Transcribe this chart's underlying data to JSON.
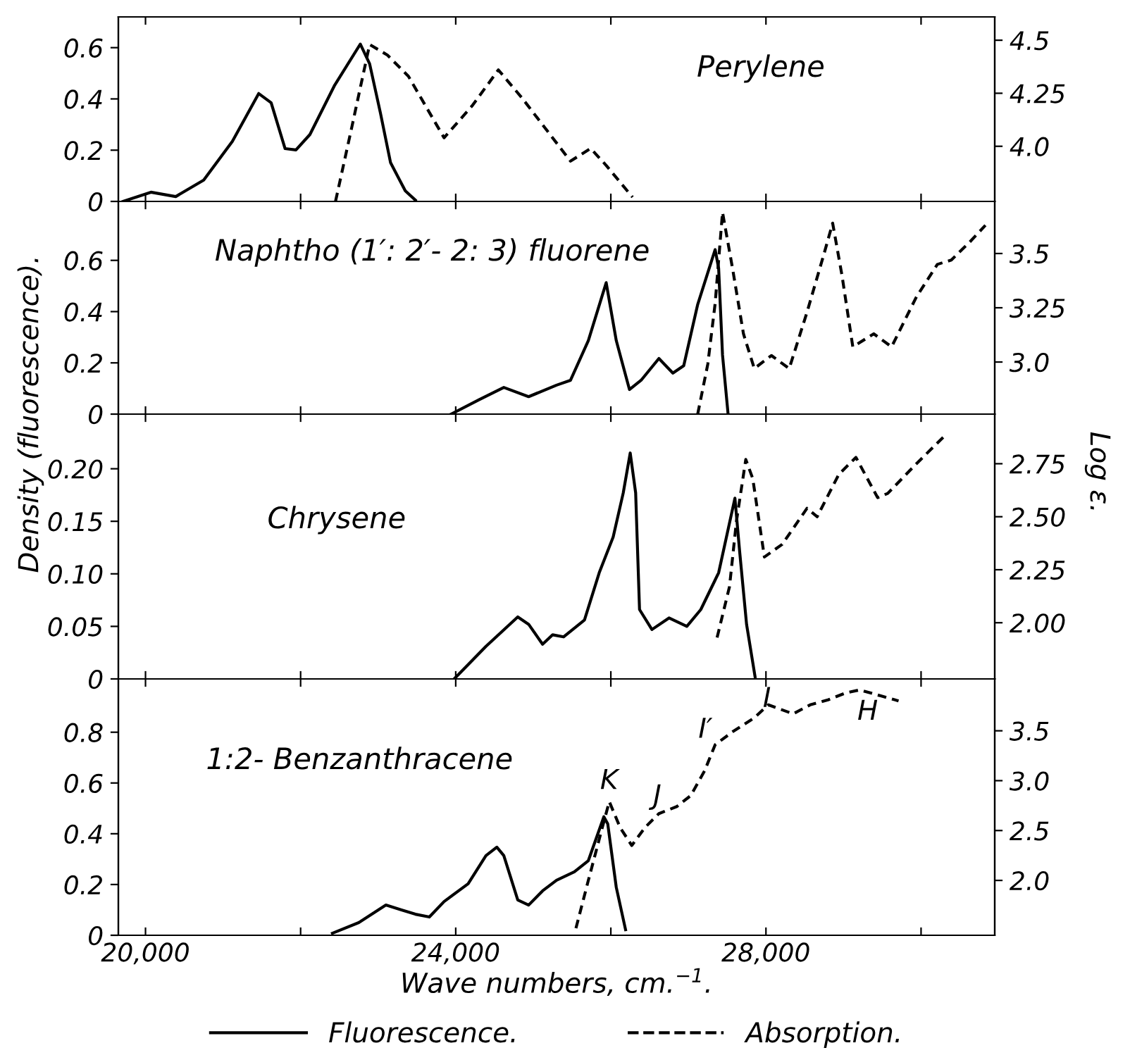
{
  "chart_data": [
    {
      "type": "line",
      "title": "Perylene",
      "xlim": [
        19650,
        30950
      ],
      "ylim": [
        0,
        0.72
      ],
      "y2lim": [
        3.74,
        4.61
      ],
      "xticks": [
        {
          "value": 20000,
          "label": null
        },
        {
          "value": 22000,
          "label": null
        },
        {
          "value": 24000,
          "label": null
        },
        {
          "value": 26000,
          "label": null
        },
        {
          "value": 28000,
          "label": null
        },
        {
          "value": 30000,
          "label": null
        }
      ],
      "yticks": [
        0,
        0.2,
        0.4,
        0.6
      ],
      "y2ticks": [
        {
          "value": 4.0,
          "label": "4.0"
        },
        4.25,
        4.5
      ],
      "tick_labels": "y",
      "legend": false,
      "series": [
        {
          "color": "#000000",
          "line_style": "solid",
          "x": [
            19710,
            20070,
            20390,
            20750,
            21120,
            21460,
            21620,
            21800,
            21940,
            22120,
            22440,
            22770,
            22890,
            23030,
            23160,
            23350,
            23480
          ],
          "values": [
            0,
            0.036,
            0.019,
            0.083,
            0.234,
            0.421,
            0.385,
            0.206,
            0.201,
            0.261,
            0.454,
            0.614,
            0.537,
            0.344,
            0.151,
            0.041,
            0.005
          ]
        },
        {
          "color": "#000000",
          "line_style": "dashed",
          "axis": "y2",
          "x": [
            22450,
            22660,
            22890,
            23120,
            23390,
            23850,
            24210,
            24550,
            24850,
            25480,
            25740,
            25940,
            26280
          ],
          "values": [
            3.74,
            4.09,
            4.48,
            4.43,
            4.33,
            4.04,
            4.19,
            4.36,
            4.23,
            3.93,
            3.99,
            3.91,
            3.76
          ]
        }
      ]
    },
    {
      "type": "line",
      "title": "Naphtho (1′: 2′- 2: 3) fluorene",
      "xlim": [
        19650,
        30950
      ],
      "ylim": [
        0,
        0.83
      ],
      "y2lim": [
        2.76,
        3.74
      ],
      "xticks": [
        {
          "value": 20000,
          "label": null
        },
        {
          "value": 22000,
          "label": null
        },
        {
          "value": 24000,
          "label": null
        },
        {
          "value": 26000,
          "label": null
        },
        {
          "value": 28000,
          "label": null
        },
        {
          "value": 30000,
          "label": null
        }
      ],
      "yticks": [
        0,
        0.2,
        0.4,
        0.6
      ],
      "y2ticks": [
        {
          "value": 3.0,
          "label": "3.0"
        },
        3.25,
        3.5
      ],
      "tick_labels": "y",
      "legend": false,
      "series": [
        {
          "color": "#000000",
          "line_style": "solid",
          "x": [
            23940,
            24300,
            24620,
            24940,
            25300,
            25480,
            25710,
            25940,
            26070,
            26240,
            26390,
            26620,
            26800,
            26940,
            27120,
            27345,
            27390,
            27440,
            27510
          ],
          "values": [
            0,
            0.056,
            0.104,
            0.068,
            0.113,
            0.132,
            0.287,
            0.513,
            0.287,
            0.096,
            0.132,
            0.217,
            0.16,
            0.189,
            0.428,
            0.642,
            0.569,
            0.231,
            0.006
          ]
        },
        {
          "color": "#000000",
          "line_style": "dashed",
          "axis": "y2",
          "x": [
            27120,
            27250,
            27345,
            27440,
            27570,
            27710,
            27850,
            28070,
            28300,
            28530,
            28750,
            28860,
            28980,
            29120,
            29390,
            29620,
            29940,
            30210,
            30390,
            30620,
            30830
          ],
          "values": [
            2.76,
            2.99,
            3.27,
            3.69,
            3.43,
            3.13,
            2.97,
            3.03,
            2.97,
            3.23,
            3.5,
            3.64,
            3.4,
            3.07,
            3.13,
            3.07,
            3.3,
            3.45,
            3.47,
            3.55,
            3.63
          ]
        }
      ]
    },
    {
      "type": "line",
      "title": "Chrysene",
      "ylabel": "Density (fluorescence).",
      "y2label": "Log ε.",
      "xlim": [
        19650,
        30950
      ],
      "ylim": [
        0,
        0.252
      ],
      "y2lim": [
        1.735,
        2.984
      ],
      "xticks": [
        {
          "value": 20000,
          "label": null
        },
        {
          "value": 22000,
          "label": null
        },
        {
          "value": 24000,
          "label": null
        },
        {
          "value": 26000,
          "label": null
        },
        {
          "value": 28000,
          "label": null
        },
        {
          "value": 30000,
          "label": null
        }
      ],
      "yticks": [
        0,
        0.05,
        {
          "value": 0.1,
          "label": "0.10"
        },
        0.15,
        {
          "value": 0.2,
          "label": "0.20"
        }
      ],
      "y2ticks": [
        {
          "value": 2.0,
          "label": "2.00"
        },
        2.25,
        {
          "value": 2.5,
          "label": "2.50"
        },
        2.75
      ],
      "tick_labels": "y",
      "legend": false,
      "series": [
        {
          "color": "#000000",
          "line_style": "solid",
          "x": [
            23980,
            24390,
            24800,
            24940,
            25120,
            25250,
            25390,
            25660,
            25850,
            26030,
            26160,
            26250,
            26320,
            26370,
            26530,
            26750,
            26980,
            27160,
            27390,
            27600,
            27660,
            27750,
            27860
          ],
          "values": [
            0,
            0.031,
            0.059,
            0.052,
            0.033,
            0.042,
            0.04,
            0.056,
            0.101,
            0.135,
            0.177,
            0.215,
            0.177,
            0.066,
            0.047,
            0.058,
            0.05,
            0.066,
            0.101,
            0.172,
            0.122,
            0.052,
            0.002
          ]
        },
        {
          "color": "#000000",
          "line_style": "dashed",
          "axis": "y2",
          "x": [
            27370,
            27530,
            27620,
            27740,
            27830,
            27980,
            28210,
            28530,
            28660,
            28940,
            29160,
            29440,
            29570,
            29940,
            30300
          ],
          "values": [
            1.93,
            2.17,
            2.48,
            2.77,
            2.68,
            2.31,
            2.37,
            2.54,
            2.5,
            2.7,
            2.78,
            2.59,
            2.61,
            2.75,
            2.88
          ]
        }
      ]
    },
    {
      "type": "line",
      "title": "1:2- Benzanthracene",
      "xlabel": "Wave numbers, cm.$^{−1}$.",
      "xlim": [
        19650,
        30950
      ],
      "ylim": [
        0,
        1.01
      ],
      "y2lim": [
        1.45,
        4.02
      ],
      "xticks": [
        {
          "value": 20000,
          "label": "20,000"
        },
        {
          "value": 22000,
          "label": null
        },
        {
          "value": 24000,
          "label": "24,000"
        },
        {
          "value": 26000,
          "label": null
        },
        {
          "value": 28000,
          "label": "28,000"
        },
        {
          "value": 30000,
          "label": null
        }
      ],
      "yticks": [
        0,
        0.2,
        0.4,
        0.6,
        0.8
      ],
      "y2ticks": [
        {
          "value": 2.0,
          "label": "2.0"
        },
        2.5,
        {
          "value": 3.0,
          "label": "3.0"
        },
        3.5
      ],
      "legend": "bottom",
      "annotations": [
        "K",
        "J",
        "I′",
        "I",
        "H"
      ],
      "series": [
        {
          "name": "Fluorescence.",
          "color": "#000000",
          "line_style": "solid",
          "x": [
            22410,
            22750,
            23100,
            23300,
            23480,
            23660,
            23850,
            24160,
            24390,
            24530,
            24620,
            24800,
            24940,
            25120,
            25300,
            25530,
            25710,
            25910,
            25960,
            26070,
            26190
          ],
          "values": [
            0.008,
            0.05,
            0.119,
            0.1,
            0.083,
            0.072,
            0.133,
            0.203,
            0.314,
            0.347,
            0.314,
            0.139,
            0.119,
            0.175,
            0.217,
            0.25,
            0.294,
            0.467,
            0.439,
            0.189,
            0.022
          ]
        },
        {
          "name": "Absorption.",
          "color": "#000000",
          "line_style": "dashed",
          "axis": "y2",
          "x": [
            25550,
            25710,
            25890,
            25980,
            26120,
            26270,
            26440,
            26620,
            26850,
            27030,
            27210,
            27345,
            27570,
            27850,
            28030,
            28350,
            28570,
            28800,
            29030,
            29210,
            29480,
            29710
          ],
          "values": [
            1.52,
            2.0,
            2.53,
            2.79,
            2.53,
            2.35,
            2.53,
            2.67,
            2.74,
            2.85,
            3.1,
            3.36,
            3.49,
            3.63,
            3.76,
            3.67,
            3.76,
            3.81,
            3.88,
            3.91,
            3.85,
            3.8
          ]
        }
      ]
    }
  ]
}
